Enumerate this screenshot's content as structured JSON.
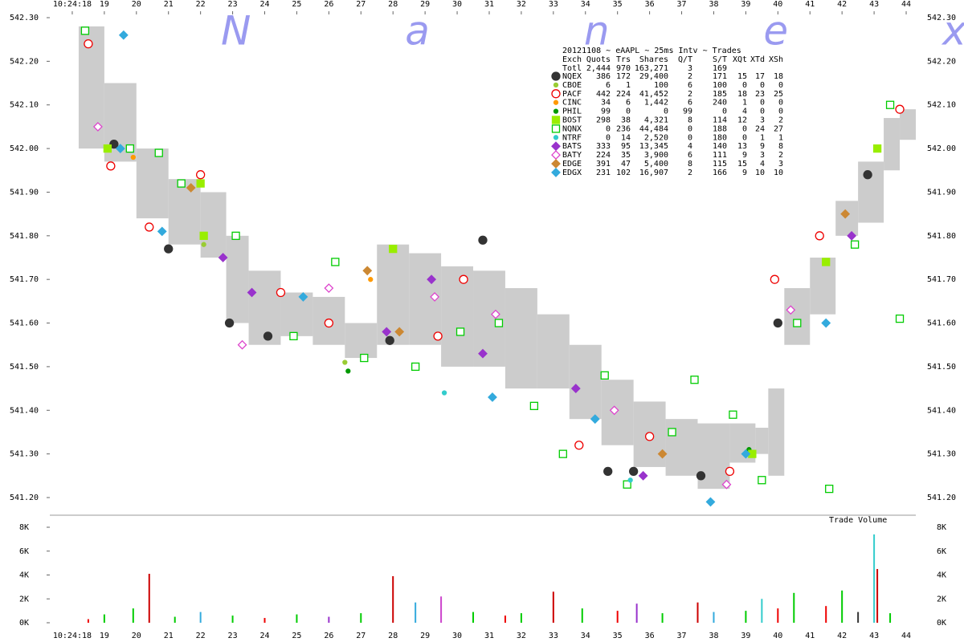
{
  "chart_data": {
    "type": "scatter",
    "title": "N a n e x",
    "subtitle": "20121108 ~ eAAPL ~ 25ms Intv ~ Trades",
    "xlim": [
      17.3,
      44.3
    ],
    "xticks": [
      {
        "value": 18,
        "label": "10:24:18"
      },
      19,
      20,
      21,
      22,
      23,
      24,
      25,
      26,
      27,
      28,
      29,
      30,
      31,
      32,
      33,
      34,
      35,
      36,
      37,
      38,
      39,
      40,
      41,
      42,
      43,
      44
    ],
    "ylim": [
      541.2,
      542.3
    ],
    "yticks": [
      {
        "value": 542.3,
        "label": "542.30"
      },
      {
        "value": 542.2,
        "label": "542.20"
      },
      {
        "value": 542.1,
        "label": "542.10"
      },
      {
        "value": 542.0,
        "label": "542.00"
      },
      {
        "value": 541.9,
        "label": "541.90"
      },
      {
        "value": 541.8,
        "label": "541.80"
      },
      {
        "value": 541.7,
        "label": "541.70"
      },
      {
        "value": 541.6,
        "label": "541.60"
      },
      {
        "value": 541.5,
        "label": "541.50"
      },
      {
        "value": 541.4,
        "label": "541.40"
      },
      {
        "value": 541.3,
        "label": "541.30"
      },
      {
        "value": 541.2,
        "label": "541.20"
      }
    ],
    "band": {
      "color": "#cccccc",
      "x": [
        18.2,
        19,
        20,
        21,
        22,
        22.8,
        23.5,
        24.5,
        25.5,
        26.5,
        27.5,
        28.5,
        29.5,
        30.5,
        31.5,
        32.5,
        33.5,
        34.5,
        35.5,
        36.5,
        37.5,
        38.5,
        39.3,
        39.7,
        40.2,
        41,
        41.8,
        42.5,
        43.3,
        43.8
      ],
      "low": [
        542.0,
        541.97,
        541.84,
        541.78,
        541.75,
        541.6,
        541.55,
        541.57,
        541.55,
        541.52,
        541.55,
        541.55,
        541.5,
        541.5,
        541.45,
        541.45,
        541.38,
        541.32,
        541.27,
        541.25,
        541.22,
        541.28,
        541.3,
        541.25,
        541.55,
        541.62,
        541.8,
        541.83,
        541.95,
        542.02
      ],
      "high": [
        542.28,
        542.15,
        542.0,
        541.93,
        541.9,
        541.8,
        541.72,
        541.67,
        541.66,
        541.6,
        541.78,
        541.76,
        541.73,
        541.72,
        541.68,
        541.62,
        541.55,
        541.47,
        541.42,
        541.38,
        541.37,
        541.37,
        541.36,
        541.45,
        541.68,
        541.75,
        541.88,
        541.97,
        542.07,
        542.09
      ]
    },
    "legend_table": {
      "header": [
        "Exch",
        "Quots",
        "Trs",
        "Shares",
        "Q/T",
        "S/T",
        "XQt",
        "XTd",
        "XSh"
      ],
      "total": {
        "label": "Totl",
        "cells": [
          "2,444",
          "970",
          "163,271",
          "3",
          "169"
        ]
      }
    },
    "series": [
      {
        "name": "NQEX",
        "color": "#333333",
        "marker": "circle",
        "filled": true,
        "stats": [
          "386",
          "172",
          "29,400",
          "2",
          "171",
          "15",
          "17",
          "18"
        ],
        "x": [
          19.3,
          21.0,
          22.9,
          24.1,
          27.9,
          30.8,
          34.7,
          35.5,
          37.6,
          40.0,
          42.8
        ],
        "values": [
          542.01,
          541.77,
          541.6,
          541.57,
          541.56,
          541.79,
          541.26,
          541.26,
          541.25,
          541.6,
          541.94
        ]
      },
      {
        "name": "CBOE",
        "color": "#99cc33",
        "marker": "dot",
        "filled": true,
        "stats": [
          "6",
          "1",
          "100",
          "6",
          "100",
          "0",
          "0",
          "0"
        ],
        "x": [
          22.1,
          26.5
        ],
        "values": [
          541.78,
          541.51
        ]
      },
      {
        "name": "PACF",
        "color": "#ee0000",
        "marker": "circle",
        "filled": false,
        "stats": [
          "442",
          "224",
          "41,452",
          "2",
          "185",
          "18",
          "23",
          "25"
        ],
        "x": [
          18.5,
          19.2,
          20.4,
          22.0,
          24.5,
          26.0,
          29.4,
          30.2,
          33.8,
          36.0,
          38.5,
          39.9,
          41.3,
          43.8
        ],
        "values": [
          542.24,
          541.96,
          541.82,
          541.94,
          541.67,
          541.6,
          541.57,
          541.7,
          541.32,
          541.34,
          541.26,
          541.7,
          541.8,
          542.09
        ]
      },
      {
        "name": "CINC",
        "color": "#ff9900",
        "marker": "dot",
        "filled": true,
        "stats": [
          "34",
          "6",
          "1,442",
          "6",
          "240",
          "1",
          "0",
          "0"
        ],
        "x": [
          19.9,
          27.3
        ],
        "values": [
          541.98,
          541.7
        ]
      },
      {
        "name": "PHIL",
        "color": "#009900",
        "marker": "dot",
        "filled": true,
        "stats": [
          "99",
          "0",
          "0",
          "99",
          "0",
          "4",
          "0",
          "0"
        ],
        "x": [
          26.6,
          39.1
        ],
        "values": [
          541.49,
          541.31
        ]
      },
      {
        "name": "BOST",
        "color": "#99ee00",
        "marker": "square",
        "filled": true,
        "stats": [
          "298",
          "38",
          "4,321",
          "8",
          "114",
          "12",
          "3",
          "2"
        ],
        "x": [
          19.1,
          22.0,
          22.1,
          28.0,
          39.2,
          41.5,
          43.1
        ],
        "values": [
          542.0,
          541.92,
          541.8,
          541.77,
          541.3,
          541.74,
          542.0
        ]
      },
      {
        "name": "NQNX",
        "color": "#00cc00",
        "marker": "square",
        "filled": false,
        "stats": [
          "0",
          "236",
          "44,484",
          "0",
          "188",
          "0",
          "24",
          "27"
        ],
        "x": [
          18.4,
          19.8,
          20.7,
          21.4,
          23.1,
          24.9,
          26.2,
          27.1,
          28.7,
          30.1,
          31.3,
          32.4,
          33.3,
          34.6,
          35.3,
          36.7,
          37.4,
          38.6,
          39.5,
          40.6,
          41.6,
          42.4,
          43.5,
          43.8
        ],
        "values": [
          542.27,
          542.0,
          541.99,
          541.92,
          541.8,
          541.57,
          541.74,
          541.52,
          541.5,
          541.58,
          541.6,
          541.41,
          541.3,
          541.48,
          541.23,
          541.35,
          541.47,
          541.39,
          541.24,
          541.6,
          541.22,
          541.78,
          542.1,
          541.61
        ]
      },
      {
        "name": "NTRF",
        "color": "#33cccc",
        "marker": "dot",
        "filled": true,
        "stats": [
          "0",
          "14",
          "2,520",
          "0",
          "180",
          "0",
          "1",
          "1"
        ],
        "x": [
          29.6,
          35.4
        ],
        "values": [
          541.44,
          541.24
        ]
      },
      {
        "name": "BATS",
        "color": "#9933cc",
        "marker": "diamond",
        "filled": true,
        "stats": [
          "333",
          "95",
          "13,345",
          "4",
          "140",
          "13",
          "9",
          "8"
        ],
        "x": [
          22.7,
          23.6,
          27.8,
          29.2,
          30.8,
          33.7,
          35.8,
          42.3
        ],
        "values": [
          541.75,
          541.67,
          541.58,
          541.7,
          541.53,
          541.45,
          541.25,
          541.8
        ]
      },
      {
        "name": "BATY",
        "color": "#dd44cc",
        "marker": "diamond",
        "filled": false,
        "stats": [
          "224",
          "35",
          "3,900",
          "6",
          "111",
          "9",
          "3",
          "2"
        ],
        "x": [
          18.8,
          23.3,
          26.0,
          29.3,
          31.2,
          34.9,
          38.4,
          40.4
        ],
        "values": [
          542.05,
          541.55,
          541.68,
          541.66,
          541.62,
          541.4,
          541.23,
          541.63
        ]
      },
      {
        "name": "EDGE",
        "color": "#cc8833",
        "marker": "diamond",
        "filled": true,
        "stats": [
          "391",
          "47",
          "5,400",
          "8",
          "115",
          "15",
          "4",
          "3"
        ],
        "x": [
          21.7,
          27.2,
          28.2,
          36.4,
          42.1
        ],
        "values": [
          541.91,
          541.72,
          541.58,
          541.3,
          541.85
        ]
      },
      {
        "name": "EDGX",
        "color": "#33aadd",
        "marker": "diamond",
        "filled": true,
        "stats": [
          "231",
          "102",
          "16,907",
          "2",
          "166",
          "9",
          "10",
          "10"
        ],
        "x": [
          19.6,
          19.5,
          20.8,
          25.2,
          31.1,
          34.3,
          37.9,
          39.0,
          41.5
        ],
        "values": [
          542.26,
          542.0,
          541.81,
          541.66,
          541.43,
          541.38,
          541.19,
          541.3,
          541.6
        ]
      }
    ],
    "volume": {
      "title": "Trade Volume",
      "ylim": [
        0,
        8000
      ],
      "yticks": [
        {
          "value": 0,
          "label": "0K"
        },
        {
          "value": 2000,
          "label": "2K"
        },
        {
          "value": 4000,
          "label": "4K"
        },
        {
          "value": 6000,
          "label": "6K"
        },
        {
          "value": 8000,
          "label": "8K"
        }
      ],
      "x": [
        18.5,
        19.0,
        19.9,
        20.4,
        21.2,
        22.0,
        23.0,
        24.0,
        25.0,
        26.0,
        27.0,
        28.0,
        28.7,
        29.5,
        30.5,
        31.5,
        32.0,
        33.0,
        33.9,
        35.0,
        35.6,
        36.4,
        37.5,
        38.0,
        39.0,
        39.5,
        40.0,
        40.5,
        41.5,
        42.0,
        42.5,
        43.0,
        43.1,
        43.5
      ],
      "values": [
        300,
        700,
        1200,
        4100,
        500,
        900,
        600,
        400,
        700,
        500,
        800,
        3900,
        1700,
        2200,
        900,
        600,
        800,
        2600,
        1200,
        1000,
        1600,
        800,
        1700,
        900,
        1000,
        2000,
        1200,
        2500,
        1400,
        2700,
        900,
        7400,
        4500,
        800
      ],
      "colors": [
        "#ee0000",
        "#00cc00",
        "#00cc00",
        "#cc0000",
        "#00cc00",
        "#33aadd",
        "#00cc00",
        "#ee0000",
        "#00cc00",
        "#9933cc",
        "#00cc00",
        "#cc0000",
        "#33aadd",
        "#cc44cc",
        "#00cc00",
        "#ee0000",
        "#00cc00",
        "#cc0000",
        "#00cc00",
        "#ee0000",
        "#9933cc",
        "#00cc00",
        "#cc0000",
        "#33aadd",
        "#00cc00",
        "#33cccc",
        "#ee0000",
        "#00cc00",
        "#ee0000",
        "#00cc00",
        "#333333",
        "#33cccc",
        "#cc0000",
        "#00cc00"
      ]
    }
  }
}
